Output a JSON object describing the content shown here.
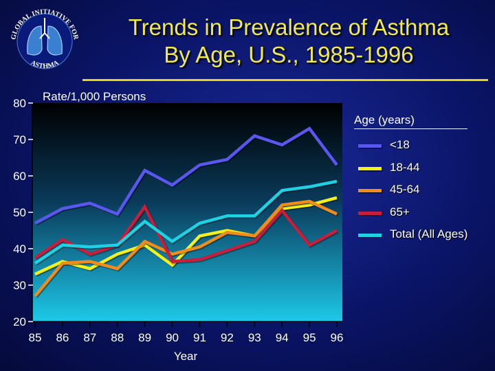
{
  "title": {
    "line1": "Trends in Prevalence of Asthma",
    "line2": "By Age, U.S., 1985-1996"
  },
  "logo": {
    "name": "GINA global initiative for asthma lung logo",
    "top_text": "GLOBAL INITIATIVE FOR",
    "bottom_text": "ASTHMA",
    "accent": "#5aa0e0"
  },
  "colors": {
    "title": "#f2e94e",
    "rule": "#e8d21a",
    "plot_top": "#000000",
    "plot_bottom": "#1ec8e8"
  },
  "chart_data": {
    "type": "line",
    "ylabel": "Rate/1,000 Persons",
    "xlabel": "Year",
    "x": [
      "85",
      "86",
      "87",
      "88",
      "89",
      "90",
      "91",
      "92",
      "93",
      "94",
      "95",
      "96"
    ],
    "x_numeric": [
      85,
      86,
      87,
      88,
      89,
      90,
      91,
      92,
      93,
      94,
      95,
      96
    ],
    "x_range": [
      84.9,
      96.2
    ],
    "ylim": [
      20,
      80
    ],
    "yticks": [
      20,
      30,
      40,
      50,
      60,
      70,
      80
    ],
    "legend_title": "Age (years)",
    "legend_position": "right",
    "series": [
      {
        "name": "<18",
        "color": "#5a56ee",
        "values": [
          47,
          51,
          52.5,
          49.5,
          61.5,
          57.5,
          63,
          64.5,
          71,
          68.5,
          73,
          63
        ]
      },
      {
        "name": "18-44",
        "color": "#f5f01a",
        "values": [
          33,
          36.5,
          34.5,
          38.5,
          41,
          35.5,
          43.5,
          45,
          43.5,
          51,
          52,
          54
        ]
      },
      {
        "name": "45-64",
        "color": "#f08c1e",
        "values": [
          27,
          36,
          36.5,
          34.5,
          42,
          38.5,
          40.5,
          44.5,
          43.5,
          52,
          53,
          49.5
        ]
      },
      {
        "name": "65+",
        "color": "#c81e3c",
        "values": [
          37.5,
          42.5,
          38.5,
          41,
          51.5,
          36.5,
          37,
          39.5,
          42,
          50.5,
          41,
          45
        ]
      },
      {
        "name": "Total (All Ages)",
        "color": "#1ed2e6",
        "values": [
          36,
          41,
          40.5,
          41,
          47.5,
          42,
          47,
          49,
          49,
          56,
          57,
          58.5
        ]
      }
    ]
  }
}
